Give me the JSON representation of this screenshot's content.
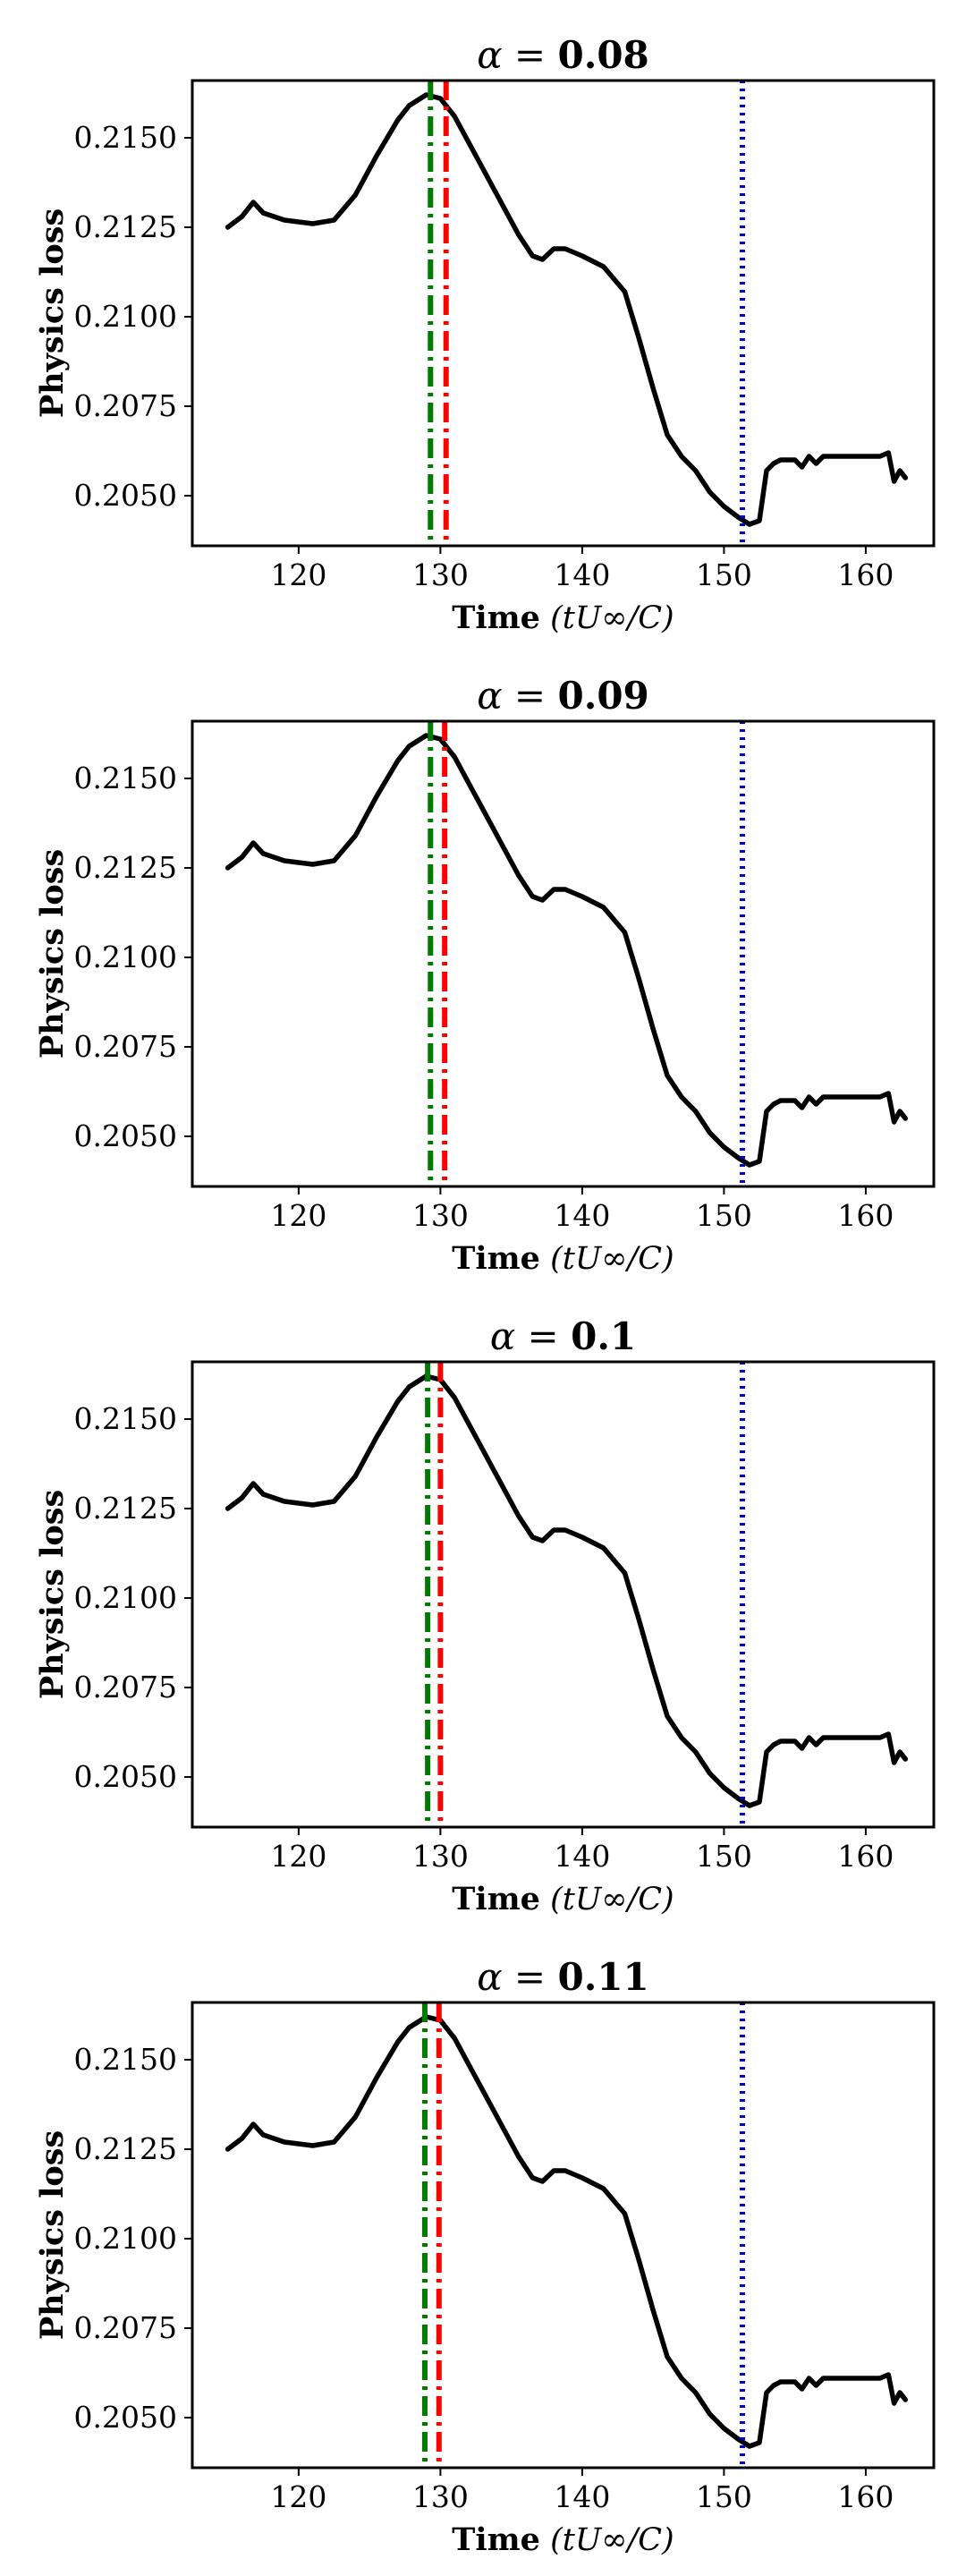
{
  "chart_data": [
    {
      "type": "line",
      "title_symbol": "α",
      "title_eq": " = ",
      "title_value": "0.08",
      "xlabel": "Time",
      "xlabel_unit": "(tU∞/C)",
      "ylabel": "Physics loss",
      "xlim": [
        112.5,
        164.8
      ],
      "ylim": [
        0.2036,
        0.2166
      ],
      "xticks": [
        120,
        130,
        140,
        150,
        160
      ],
      "yticks": [
        0.205,
        0.2075,
        0.21,
        0.2125,
        0.215
      ],
      "xtick_labels": [
        "120",
        "130",
        "140",
        "150",
        "160"
      ],
      "ytick_labels": [
        "0.2050",
        "0.2075",
        "0.2100",
        "0.2125",
        "0.2150"
      ],
      "markers": [
        {
          "x": 129.3,
          "color": "#007a00",
          "style": "dashdot"
        },
        {
          "x": 130.4,
          "color": "#ff0000",
          "style": "dashdot"
        },
        {
          "x": 151.3,
          "color": "#0000dd",
          "style": "dotted"
        }
      ],
      "series": [
        {
          "name": "physics_loss",
          "x": [
            115,
            116,
            116.8,
            117.5,
            119,
            121,
            122.5,
            124,
            125.5,
            127,
            127.8,
            129,
            130,
            131,
            132.5,
            134,
            135.5,
            136.5,
            137.2,
            138,
            138.8,
            140,
            141.5,
            143,
            144,
            145,
            146,
            147,
            148,
            149,
            150,
            151,
            151.8,
            152.5,
            153,
            153.5,
            154,
            155,
            155.5,
            156,
            156.5,
            157,
            158,
            159,
            160,
            161,
            161.6,
            162,
            162.4,
            162.8
          ],
          "y": [
            0.2125,
            0.2128,
            0.2132,
            0.2129,
            0.2127,
            0.2126,
            0.2127,
            0.2134,
            0.2145,
            0.2155,
            0.2159,
            0.2162,
            0.2161,
            0.2156,
            0.2145,
            0.2134,
            0.2123,
            0.2117,
            0.2116,
            0.2119,
            0.2119,
            0.2117,
            0.2114,
            0.2107,
            0.2094,
            0.208,
            0.2067,
            0.2061,
            0.2057,
            0.2051,
            0.2047,
            0.2044,
            0.2042,
            0.2043,
            0.2057,
            0.2059,
            0.206,
            0.206,
            0.2058,
            0.2061,
            0.2059,
            0.2061,
            0.2061,
            0.2061,
            0.2061,
            0.2061,
            0.2062,
            0.2054,
            0.2057,
            0.2055
          ]
        }
      ]
    },
    {
      "type": "line",
      "title_symbol": "α",
      "title_eq": " = ",
      "title_value": "0.09",
      "xlabel": "Time",
      "xlabel_unit": "(tU∞/C)",
      "ylabel": "Physics loss",
      "xlim": [
        112.5,
        164.8
      ],
      "ylim": [
        0.2036,
        0.2166
      ],
      "xticks": [
        120,
        130,
        140,
        150,
        160
      ],
      "yticks": [
        0.205,
        0.2075,
        0.21,
        0.2125,
        0.215
      ],
      "xtick_labels": [
        "120",
        "130",
        "140",
        "150",
        "160"
      ],
      "ytick_labels": [
        "0.2050",
        "0.2075",
        "0.2100",
        "0.2125",
        "0.2150"
      ],
      "markers": [
        {
          "x": 129.3,
          "color": "#007a00",
          "style": "dashdot"
        },
        {
          "x": 130.3,
          "color": "#ff0000",
          "style": "dashdot"
        },
        {
          "x": 151.3,
          "color": "#0000dd",
          "style": "dotted"
        }
      ],
      "series": [
        {
          "name": "physics_loss",
          "x": [
            115,
            116,
            116.8,
            117.5,
            119,
            121,
            122.5,
            124,
            125.5,
            127,
            127.8,
            129,
            130,
            131,
            132.5,
            134,
            135.5,
            136.5,
            137.2,
            138,
            138.8,
            140,
            141.5,
            143,
            144,
            145,
            146,
            147,
            148,
            149,
            150,
            151,
            151.8,
            152.5,
            153,
            153.5,
            154,
            155,
            155.5,
            156,
            156.5,
            157,
            158,
            159,
            160,
            161,
            161.6,
            162,
            162.4,
            162.8
          ],
          "y": [
            0.2125,
            0.2128,
            0.2132,
            0.2129,
            0.2127,
            0.2126,
            0.2127,
            0.2134,
            0.2145,
            0.2155,
            0.2159,
            0.2162,
            0.2161,
            0.2156,
            0.2145,
            0.2134,
            0.2123,
            0.2117,
            0.2116,
            0.2119,
            0.2119,
            0.2117,
            0.2114,
            0.2107,
            0.2094,
            0.208,
            0.2067,
            0.2061,
            0.2057,
            0.2051,
            0.2047,
            0.2044,
            0.2042,
            0.2043,
            0.2057,
            0.2059,
            0.206,
            0.206,
            0.2058,
            0.2061,
            0.2059,
            0.2061,
            0.2061,
            0.2061,
            0.2061,
            0.2061,
            0.2062,
            0.2054,
            0.2057,
            0.2055
          ]
        }
      ]
    },
    {
      "type": "line",
      "title_symbol": "α",
      "title_eq": " = ",
      "title_value": "0.1",
      "xlabel": "Time",
      "xlabel_unit": "(tU∞/C)",
      "ylabel": "Physics loss",
      "xlim": [
        112.5,
        164.8
      ],
      "ylim": [
        0.2036,
        0.2166
      ],
      "xticks": [
        120,
        130,
        140,
        150,
        160
      ],
      "yticks": [
        0.205,
        0.2075,
        0.21,
        0.2125,
        0.215
      ],
      "xtick_labels": [
        "120",
        "130",
        "140",
        "150",
        "160"
      ],
      "ytick_labels": [
        "0.2050",
        "0.2075",
        "0.2100",
        "0.2125",
        "0.2150"
      ],
      "markers": [
        {
          "x": 129.1,
          "color": "#007a00",
          "style": "dashdot"
        },
        {
          "x": 130.0,
          "color": "#ff0000",
          "style": "dashdot"
        },
        {
          "x": 151.3,
          "color": "#0000dd",
          "style": "dotted"
        }
      ],
      "series": [
        {
          "name": "physics_loss",
          "x": [
            115,
            116,
            116.8,
            117.5,
            119,
            121,
            122.5,
            124,
            125.5,
            127,
            127.8,
            129,
            130,
            131,
            132.5,
            134,
            135.5,
            136.5,
            137.2,
            138,
            138.8,
            140,
            141.5,
            143,
            144,
            145,
            146,
            147,
            148,
            149,
            150,
            151,
            151.8,
            152.5,
            153,
            153.5,
            154,
            155,
            155.5,
            156,
            156.5,
            157,
            158,
            159,
            160,
            161,
            161.6,
            162,
            162.4,
            162.8
          ],
          "y": [
            0.2125,
            0.2128,
            0.2132,
            0.2129,
            0.2127,
            0.2126,
            0.2127,
            0.2134,
            0.2145,
            0.2155,
            0.2159,
            0.2162,
            0.2161,
            0.2156,
            0.2145,
            0.2134,
            0.2123,
            0.2117,
            0.2116,
            0.2119,
            0.2119,
            0.2117,
            0.2114,
            0.2107,
            0.2094,
            0.208,
            0.2067,
            0.2061,
            0.2057,
            0.2051,
            0.2047,
            0.2044,
            0.2042,
            0.2043,
            0.2057,
            0.2059,
            0.206,
            0.206,
            0.2058,
            0.2061,
            0.2059,
            0.2061,
            0.2061,
            0.2061,
            0.2061,
            0.2061,
            0.2062,
            0.2054,
            0.2057,
            0.2055
          ]
        }
      ]
    },
    {
      "type": "line",
      "title_symbol": "α",
      "title_eq": " = ",
      "title_value": "0.11",
      "xlabel": "Time",
      "xlabel_unit": "(tU∞/C)",
      "ylabel": "Physics loss",
      "xlim": [
        112.5,
        164.8
      ],
      "ylim": [
        0.2036,
        0.2166
      ],
      "xticks": [
        120,
        130,
        140,
        150,
        160
      ],
      "yticks": [
        0.205,
        0.2075,
        0.21,
        0.2125,
        0.215
      ],
      "xtick_labels": [
        "120",
        "130",
        "140",
        "150",
        "160"
      ],
      "ytick_labels": [
        "0.2050",
        "0.2075",
        "0.2100",
        "0.2125",
        "0.2150"
      ],
      "markers": [
        {
          "x": 128.9,
          "color": "#007a00",
          "style": "dashdot"
        },
        {
          "x": 129.9,
          "color": "#ff0000",
          "style": "dashdot"
        },
        {
          "x": 151.3,
          "color": "#0000dd",
          "style": "dotted"
        }
      ],
      "series": [
        {
          "name": "physics_loss",
          "x": [
            115,
            116,
            116.8,
            117.5,
            119,
            121,
            122.5,
            124,
            125.5,
            127,
            127.8,
            129,
            130,
            131,
            132.5,
            134,
            135.5,
            136.5,
            137.2,
            138,
            138.8,
            140,
            141.5,
            143,
            144,
            145,
            146,
            147,
            148,
            149,
            150,
            151,
            151.8,
            152.5,
            153,
            153.5,
            154,
            155,
            155.5,
            156,
            156.5,
            157,
            158,
            159,
            160,
            161,
            161.6,
            162,
            162.4,
            162.8
          ],
          "y": [
            0.2125,
            0.2128,
            0.2132,
            0.2129,
            0.2127,
            0.2126,
            0.2127,
            0.2134,
            0.2145,
            0.2155,
            0.2159,
            0.2162,
            0.2161,
            0.2156,
            0.2145,
            0.2134,
            0.2123,
            0.2117,
            0.2116,
            0.2119,
            0.2119,
            0.2117,
            0.2114,
            0.2107,
            0.2094,
            0.208,
            0.2067,
            0.2061,
            0.2057,
            0.2051,
            0.2047,
            0.2044,
            0.2042,
            0.2043,
            0.2057,
            0.2059,
            0.206,
            0.206,
            0.2058,
            0.2061,
            0.2059,
            0.2061,
            0.2061,
            0.2061,
            0.2061,
            0.2061,
            0.2062,
            0.2054,
            0.2057,
            0.2055
          ]
        }
      ]
    }
  ]
}
